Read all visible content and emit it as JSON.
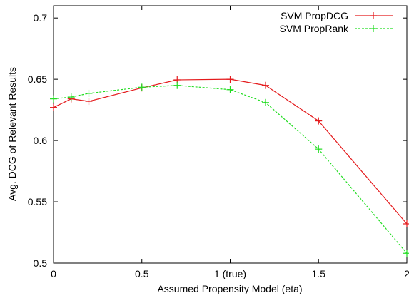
{
  "chart_data": {
    "type": "line",
    "title": "",
    "xlabel": "Assumed Propensity Model (eta)",
    "ylabel": "Avg. DCG of Relevant Results",
    "xlim": [
      0,
      2
    ],
    "ylim": [
      0.5,
      0.71
    ],
    "x_ticks": [
      {
        "value": 0,
        "label": "0"
      },
      {
        "value": 0.5,
        "label": "0.5"
      },
      {
        "value": 1,
        "label": "1 (true)"
      },
      {
        "value": 1.5,
        "label": "1.5"
      },
      {
        "value": 2,
        "label": "2"
      }
    ],
    "y_ticks": [
      {
        "value": 0.5,
        "label": "0.5"
      },
      {
        "value": 0.55,
        "label": "0.55"
      },
      {
        "value": 0.6,
        "label": "0.6"
      },
      {
        "value": 0.65,
        "label": "0.65"
      },
      {
        "value": 0.7,
        "label": "0.7"
      }
    ],
    "grid": false,
    "legend_position": "top-right",
    "series": [
      {
        "name": "SVM PropDCG",
        "color": "#e41a1c",
        "dashed": false,
        "x": [
          0,
          0.1,
          0.2,
          0.5,
          0.7,
          1.0,
          1.2,
          1.5,
          2.0
        ],
        "y": [
          0.627,
          0.634,
          0.632,
          0.643,
          0.6495,
          0.65,
          0.645,
          0.616,
          0.532
        ]
      },
      {
        "name": "SVM PropRank",
        "color": "#22dd22",
        "dashed": true,
        "x": [
          0,
          0.1,
          0.2,
          0.5,
          0.7,
          1.0,
          1.2,
          1.5,
          2.0
        ],
        "y": [
          0.634,
          0.6355,
          0.6385,
          0.6435,
          0.645,
          0.6415,
          0.631,
          0.593,
          0.508
        ]
      }
    ]
  }
}
